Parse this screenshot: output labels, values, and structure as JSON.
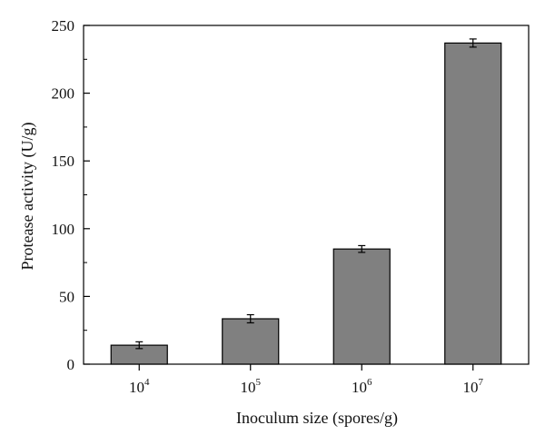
{
  "chart_data": {
    "type": "bar",
    "title": "",
    "xlabel": "Inoculum size (spores/g)",
    "ylabel": "Protease activity (U/g)",
    "categories": [
      {
        "base": "10",
        "exp": "4"
      },
      {
        "base": "10",
        "exp": "5"
      },
      {
        "base": "10",
        "exp": "6"
      },
      {
        "base": "10",
        "exp": "7"
      }
    ],
    "values": [
      14,
      33.5,
      85,
      237
    ],
    "errors": [
      2.5,
      3,
      2.5,
      3
    ],
    "ylim": [
      0,
      250
    ],
    "yticks": [
      0,
      50,
      100,
      150,
      200,
      250
    ],
    "yminor_step": 25,
    "grid": false,
    "legend": "none",
    "bar_color": "#808080",
    "edge_color": "#000000"
  }
}
